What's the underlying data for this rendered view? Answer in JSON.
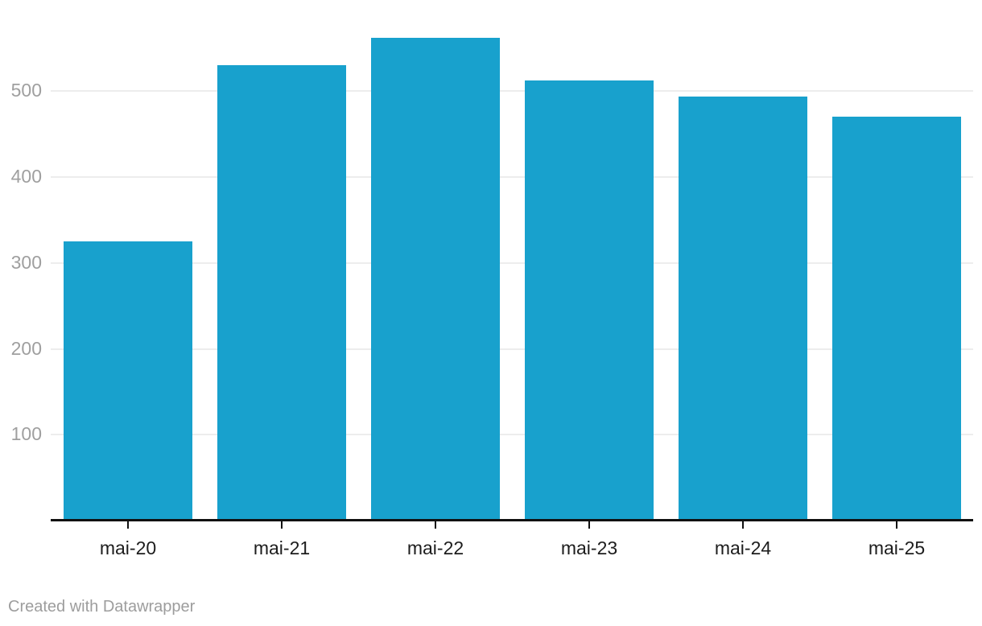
{
  "chart_data": {
    "type": "bar",
    "title": "",
    "xlabel": "",
    "ylabel": "",
    "categories": [
      "mai-20",
      "mai-21",
      "mai-22",
      "mai-23",
      "mai-24",
      "mai-25"
    ],
    "values": [
      325,
      530,
      562,
      512,
      494,
      470
    ],
    "y_ticks": [
      100,
      200,
      300,
      400,
      500
    ],
    "ylim": [
      0,
      606
    ],
    "grid": true,
    "legend": false
  },
  "footer": {
    "credit": "Created with Datawrapper"
  },
  "colors": {
    "bar": "#18a1cd",
    "gridline": "#ededed",
    "axis": "#111111",
    "y_label": "#9f9f9f",
    "x_label": "#1d1d1d",
    "footer": "#9d9d9d",
    "background": "#ffffff"
  }
}
